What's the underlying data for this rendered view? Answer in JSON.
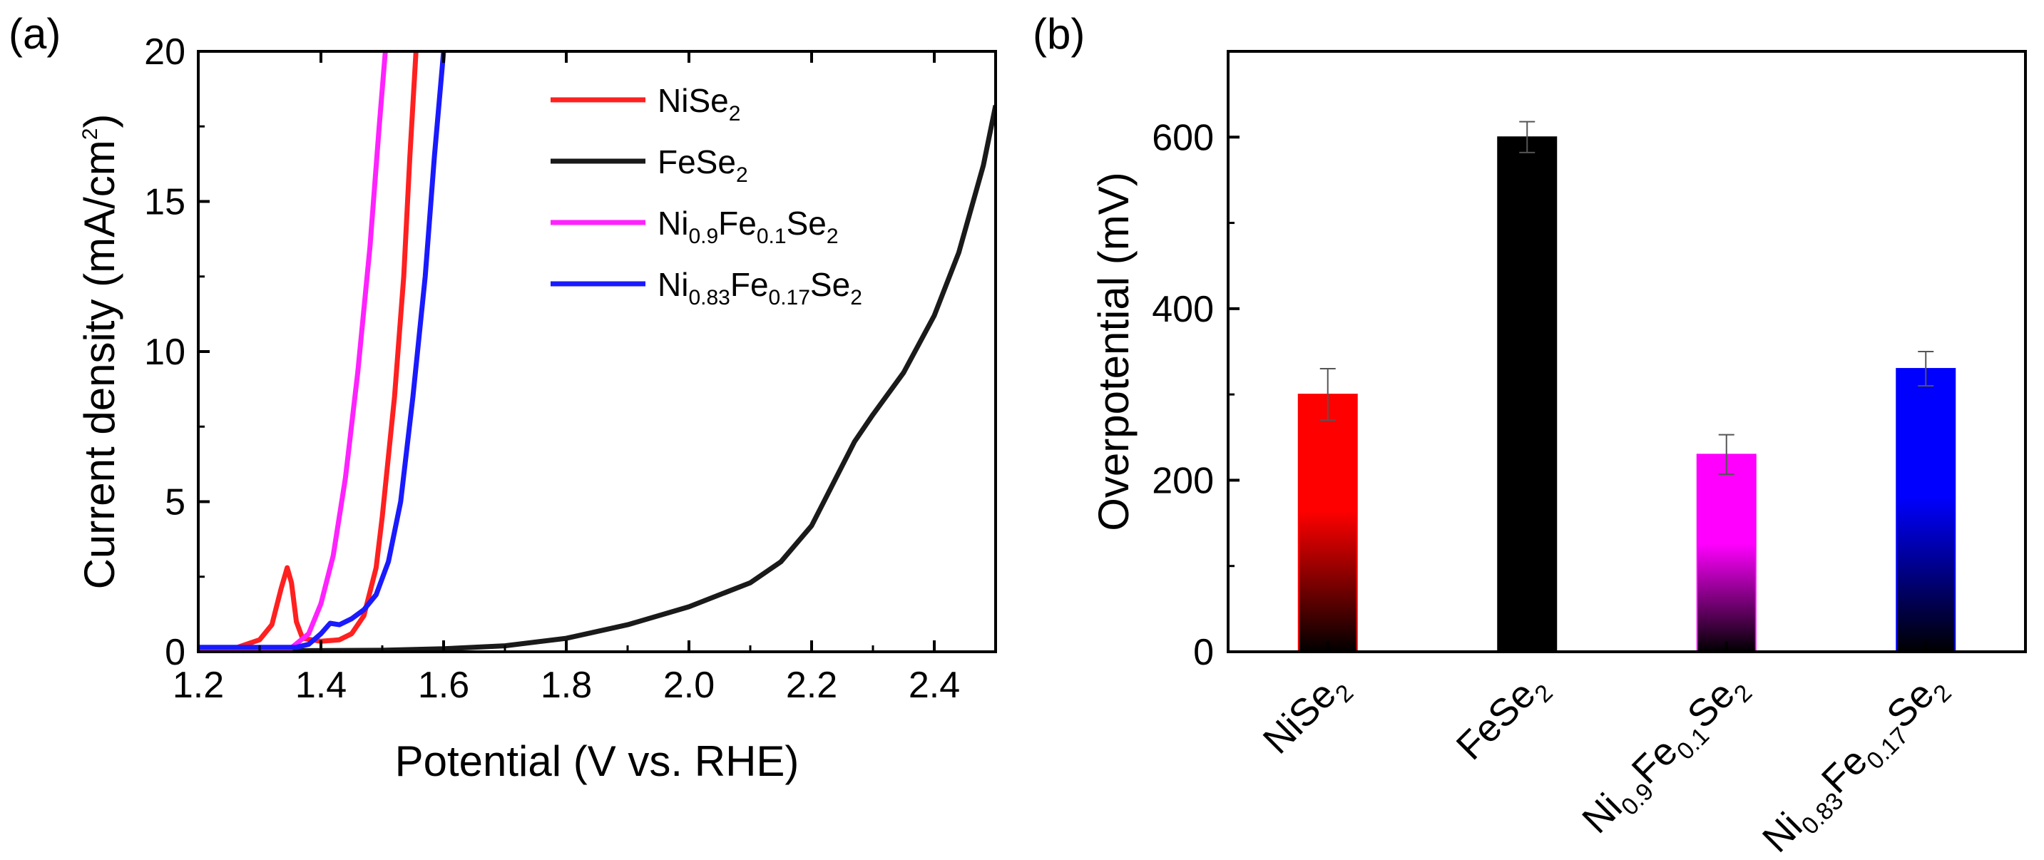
{
  "chart_data": [
    {
      "panel": "(a)",
      "type": "line",
      "title": "",
      "xlabel": "Potential (V vs. RHE)",
      "ylabel": {
        "main": "Current density (mA/cm",
        "sup": "2",
        "close": ")"
      },
      "xlim": [
        1.2,
        2.5
      ],
      "ylim": [
        0,
        20
      ],
      "xticks": [
        "1.2",
        "1.4",
        "1.6",
        "1.8",
        "2.0",
        "2.2",
        "2.4"
      ],
      "yticks": [
        "0",
        "5",
        "10",
        "15",
        "20"
      ],
      "legend_position": "top-center",
      "series": [
        {
          "name": "NiSe2",
          "label_parts": [
            [
              "Ni",
              ""
            ],
            [
              "Se",
              ""
            ],
            [
              "2",
              "sub"
            ]
          ],
          "color": "#ff2020",
          "points": [
            [
              1.2,
              0.1
            ],
            [
              1.26,
              0.12
            ],
            [
              1.3,
              0.4
            ],
            [
              1.32,
              0.9
            ],
            [
              1.335,
              2.1
            ],
            [
              1.345,
              2.8
            ],
            [
              1.352,
              2.3
            ],
            [
              1.36,
              1.0
            ],
            [
              1.37,
              0.45
            ],
            [
              1.4,
              0.35
            ],
            [
              1.43,
              0.4
            ],
            [
              1.45,
              0.6
            ],
            [
              1.47,
              1.2
            ],
            [
              1.49,
              2.8
            ],
            [
              1.5,
              4.5
            ],
            [
              1.52,
              8.5
            ],
            [
              1.535,
              12.5
            ],
            [
              1.545,
              16.5
            ],
            [
              1.555,
              20
            ]
          ]
        },
        {
          "name": "FeSe2",
          "label_parts": [
            [
              "FeSe",
              ""
            ],
            [
              "2",
              "sub"
            ]
          ],
          "color": "#1a1a1a",
          "points": [
            [
              1.2,
              0.02
            ],
            [
              1.5,
              0.05
            ],
            [
              1.6,
              0.1
            ],
            [
              1.7,
              0.2
            ],
            [
              1.8,
              0.45
            ],
            [
              1.9,
              0.9
            ],
            [
              2.0,
              1.5
            ],
            [
              2.1,
              2.3
            ],
            [
              2.15,
              3.0
            ],
            [
              2.2,
              4.2
            ],
            [
              2.24,
              5.8
            ],
            [
              2.27,
              7.0
            ],
            [
              2.3,
              7.9
            ],
            [
              2.35,
              9.3
            ],
            [
              2.4,
              11.2
            ],
            [
              2.44,
              13.3
            ],
            [
              2.48,
              16.2
            ],
            [
              2.5,
              18.2
            ]
          ]
        },
        {
          "name": "Ni0.9Fe0.1Se2",
          "label_parts": [
            [
              "Ni",
              ""
            ],
            [
              "0.9",
              "sub"
            ],
            [
              "Fe",
              ""
            ],
            [
              "0.1",
              "sub"
            ],
            [
              "Se",
              ""
            ],
            [
              "2",
              "sub"
            ]
          ],
          "color": "#ff22ff",
          "points": [
            [
              1.2,
              0.02
            ],
            [
              1.3,
              0.04
            ],
            [
              1.35,
              0.1
            ],
            [
              1.38,
              0.6
            ],
            [
              1.4,
              1.6
            ],
            [
              1.42,
              3.2
            ],
            [
              1.44,
              5.8
            ],
            [
              1.46,
              9.3
            ],
            [
              1.48,
              13.5
            ],
            [
              1.495,
              17.5
            ],
            [
              1.505,
              20
            ]
          ]
        },
        {
          "name": "Ni0.83Fe0.17Se2",
          "label_parts": [
            [
              "Ni",
              ""
            ],
            [
              "0.83",
              "sub"
            ],
            [
              "Fe",
              ""
            ],
            [
              "0.17",
              "sub"
            ],
            [
              "Se",
              ""
            ],
            [
              "2",
              "sub"
            ]
          ],
          "color": "#1a1aff",
          "points": [
            [
              1.2,
              0.15
            ],
            [
              1.3,
              0.15
            ],
            [
              1.36,
              0.15
            ],
            [
              1.38,
              0.25
            ],
            [
              1.4,
              0.6
            ],
            [
              1.415,
              0.95
            ],
            [
              1.43,
              0.9
            ],
            [
              1.45,
              1.1
            ],
            [
              1.47,
              1.4
            ],
            [
              1.49,
              1.9
            ],
            [
              1.51,
              3.0
            ],
            [
              1.53,
              5.0
            ],
            [
              1.55,
              8.5
            ],
            [
              1.57,
              12.5
            ],
            [
              1.585,
              16.5
            ],
            [
              1.6,
              20
            ]
          ]
        }
      ]
    },
    {
      "panel": "(b)",
      "type": "bar",
      "title": "",
      "xlabel": "",
      "ylabel": "Overpotential (mV)",
      "ylim": [
        0,
        700
      ],
      "yticks": [
        "0",
        "200",
        "400",
        "600"
      ],
      "categories": [
        "NiSe2",
        "FeSe2",
        "Ni0.9Fe0.1Se2",
        "Ni0.83Fe0.17Se2"
      ],
      "category_label_parts": [
        [
          [
            "NiSe",
            ""
          ],
          [
            "2",
            "sub"
          ]
        ],
        [
          [
            "FeSe",
            ""
          ],
          [
            "2",
            "sub"
          ]
        ],
        [
          [
            "Ni",
            ""
          ],
          [
            "0.9",
            "sub"
          ],
          [
            "Fe",
            ""
          ],
          [
            "0.1",
            "sub"
          ],
          [
            "Se",
            ""
          ],
          [
            "2",
            "sub"
          ]
        ],
        [
          [
            "Ni",
            ""
          ],
          [
            "0.83",
            "sub"
          ],
          [
            "Fe",
            ""
          ],
          [
            "0.17",
            "sub"
          ],
          [
            "Se",
            ""
          ],
          [
            "2",
            "sub"
          ]
        ]
      ],
      "values": [
        300,
        600,
        230,
        330
      ],
      "errors": [
        30,
        18,
        23,
        20
      ],
      "colors": [
        "#ff0000",
        "#000000",
        "#ff00ff",
        "#0000ff"
      ],
      "gradient_bottom": "#000000"
    }
  ]
}
